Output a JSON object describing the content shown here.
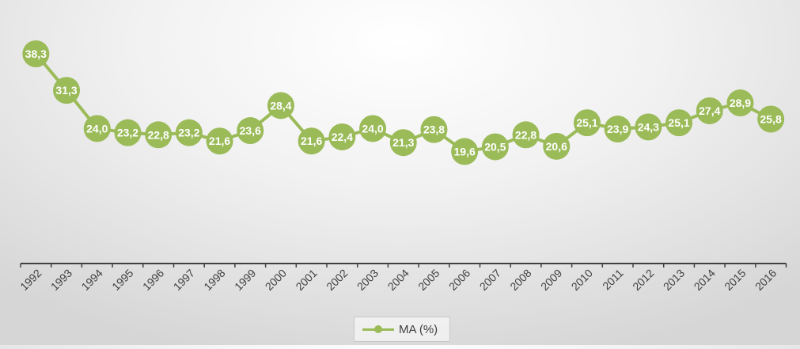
{
  "chart_data": {
    "type": "line",
    "title": "",
    "xlabel": "",
    "ylabel": "",
    "categories": [
      "1992",
      "1993",
      "1994",
      "1995",
      "1996",
      "1997",
      "1998",
      "1999",
      "2000",
      "2001",
      "2002",
      "2003",
      "2004",
      "2005",
      "2006",
      "2007",
      "2008",
      "2009",
      "2010",
      "2011",
      "2012",
      "2013",
      "2014",
      "2015",
      "2016"
    ],
    "series": [
      {
        "name": "MA (%)",
        "values": [
          38.3,
          31.3,
          24.0,
          23.2,
          22.8,
          23.2,
          21.6,
          23.6,
          28.4,
          21.6,
          22.4,
          24.0,
          21.3,
          23.8,
          19.6,
          20.5,
          22.8,
          20.6,
          25.1,
          23.9,
          24.3,
          25.1,
          27.4,
          28.9,
          25.8
        ],
        "labels": [
          "38,3",
          "31,3",
          "24,0",
          "23,2",
          "22,8",
          "23,2",
          "21,6",
          "23,6",
          "28,4",
          "21,6",
          "22,4",
          "24,0",
          "21,3",
          "23,8",
          "19,6",
          "20,5",
          "22,8",
          "20,6",
          "25,1",
          "23,9",
          "24,3",
          "25,1",
          "27,4",
          "28,9",
          "25,8"
        ],
        "color": "#9bbb59"
      }
    ],
    "grid": false,
    "legend_position": "bottom",
    "label_color": "#ffffff",
    "axis_color": "#404040",
    "tick_label_color": "#404040"
  }
}
